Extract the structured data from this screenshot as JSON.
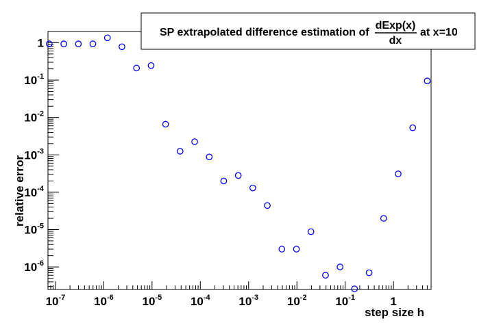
{
  "chart_data": {
    "type": "scatter",
    "title": {
      "prefix": "SP extrapolated difference estimation of",
      "numerator": "dExp(x)",
      "denominator": "dx",
      "suffix": "at x=10"
    },
    "xlabel": "step size h",
    "ylabel": "relative error",
    "x_scale": "log",
    "y_scale": "log",
    "xlim": [
      7e-08,
      6
    ],
    "ylim": [
      2.5e-07,
      2.0
    ],
    "grid": false,
    "legend": "none",
    "marker_color": "#0000ff",
    "x_ticks": [
      {
        "value": 1e-07,
        "base": "10",
        "exp": "-7"
      },
      {
        "value": 1e-06,
        "base": "10",
        "exp": "-6"
      },
      {
        "value": 1e-05,
        "base": "10",
        "exp": "-5"
      },
      {
        "value": 0.0001,
        "base": "10",
        "exp": "-4"
      },
      {
        "value": 0.001,
        "base": "10",
        "exp": "-3"
      },
      {
        "value": 0.01,
        "base": "10",
        "exp": "-2"
      },
      {
        "value": 0.1,
        "base": "10",
        "exp": "-1"
      },
      {
        "value": 1,
        "base": "1",
        "exp": ""
      }
    ],
    "y_ticks": [
      {
        "value": 1,
        "base": "1",
        "exp": ""
      },
      {
        "value": 0.1,
        "base": "10",
        "exp": "-1"
      },
      {
        "value": 0.01,
        "base": "10",
        "exp": "-2"
      },
      {
        "value": 0.001,
        "base": "10",
        "exp": "-3"
      },
      {
        "value": 0.0001,
        "base": "10",
        "exp": "-4"
      },
      {
        "value": 1e-05,
        "base": "10",
        "exp": "-5"
      },
      {
        "value": 1e-06,
        "base": "10",
        "exp": "-6"
      }
    ],
    "points": [
      {
        "x": 7.45e-08,
        "y": 0.93
      },
      {
        "x": 1.49e-07,
        "y": 0.93
      },
      {
        "x": 2.98e-07,
        "y": 0.93
      },
      {
        "x": 5.96e-07,
        "y": 0.93
      },
      {
        "x": 1.19e-06,
        "y": 1.35
      },
      {
        "x": 2.38e-06,
        "y": 0.78
      },
      {
        "x": 4.77e-06,
        "y": 0.21
      },
      {
        "x": 9.54e-06,
        "y": 0.245
      },
      {
        "x": 1.91e-05,
        "y": 0.0066
      },
      {
        "x": 3.81e-05,
        "y": 0.00125
      },
      {
        "x": 7.63e-05,
        "y": 0.00225
      },
      {
        "x": 0.000153,
        "y": 0.00088
      },
      {
        "x": 0.000305,
        "y": 0.0002
      },
      {
        "x": 0.00061,
        "y": 0.00028
      },
      {
        "x": 0.00122,
        "y": 0.00013
      },
      {
        "x": 0.00244,
        "y": 4.4e-05
      },
      {
        "x": 0.00488,
        "y": 3e-06
      },
      {
        "x": 0.00977,
        "y": 3e-06
      },
      {
        "x": 0.0195,
        "y": 8.8e-06
      },
      {
        "x": 0.0391,
        "y": 6e-07
      },
      {
        "x": 0.0781,
        "y": 1e-06
      },
      {
        "x": 0.156,
        "y": 2.6e-07
      },
      {
        "x": 0.3125,
        "y": 7e-07
      },
      {
        "x": 0.625,
        "y": 2e-05
      },
      {
        "x": 1.25,
        "y": 0.00031
      },
      {
        "x": 2.5,
        "y": 0.0053
      },
      {
        "x": 5.0,
        "y": 0.095
      }
    ]
  }
}
